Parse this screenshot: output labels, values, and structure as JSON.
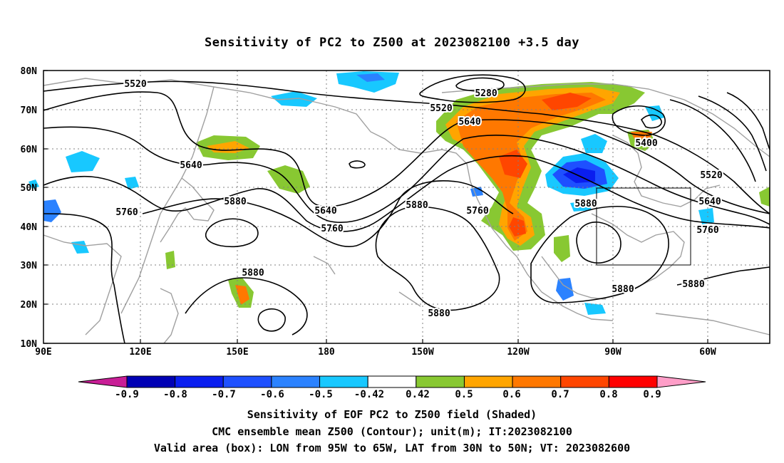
{
  "title": "Sensitivity of PC2 to Z500 at 2023082100 +3.5 day",
  "map": {
    "lat_labels": [
      "80N",
      "70N",
      "60N",
      "50N",
      "40N",
      "30N",
      "20N",
      "10N"
    ],
    "lon_labels": [
      "90E",
      "120E",
      "150E",
      "180",
      "150W",
      "120W",
      "90W",
      "60W"
    ],
    "contour_labels": [
      {
        "text": "5520"
      },
      {
        "text": "5640"
      },
      {
        "text": "5760"
      },
      {
        "text": "5880"
      },
      {
        "text": "5880"
      },
      {
        "text": "5640"
      },
      {
        "text": "5760"
      },
      {
        "text": "5880"
      },
      {
        "text": "5760"
      },
      {
        "text": "5520"
      },
      {
        "text": "5640"
      },
      {
        "text": "5280"
      },
      {
        "text": "5400"
      },
      {
        "text": "5880"
      },
      {
        "text": "5520"
      },
      {
        "text": "5640"
      },
      {
        "text": "5760"
      },
      {
        "text": "5880"
      },
      {
        "text": "5880"
      },
      {
        "text": "5880"
      }
    ],
    "valid_area": {
      "lon_from": "95W",
      "lon_to": "65W",
      "lat_from": "30N",
      "lat_to": "50N"
    }
  },
  "colorbar": {
    "labels": [
      "-0.9",
      "-0.8",
      "-0.7",
      "-0.6",
      "-0.5",
      "-0.42",
      "0.42",
      "0.5",
      "0.6",
      "0.7",
      "0.8",
      "0.9"
    ],
    "colors": [
      "#0000b4",
      "#0a1eef",
      "#1e50ff",
      "#2b82ff",
      "#18c8ff",
      "#ffffff",
      "#88c832",
      "#ffa500",
      "#ff7800",
      "#ff4600",
      "#ff0000"
    ],
    "low_end_color": "#c81e96",
    "high_end_color": "#ff9ec8"
  },
  "caption": {
    "line1": "Sensitivity of EOF PC2 to Z500 field (Shaded)",
    "line2": "CMC ensemble mean Z500 (Contour); unit(m); IT:2023082100",
    "line3": "Valid area (box): LON from 95W to 65W, LAT from 30N to 50N; VT: 2023082600"
  }
}
